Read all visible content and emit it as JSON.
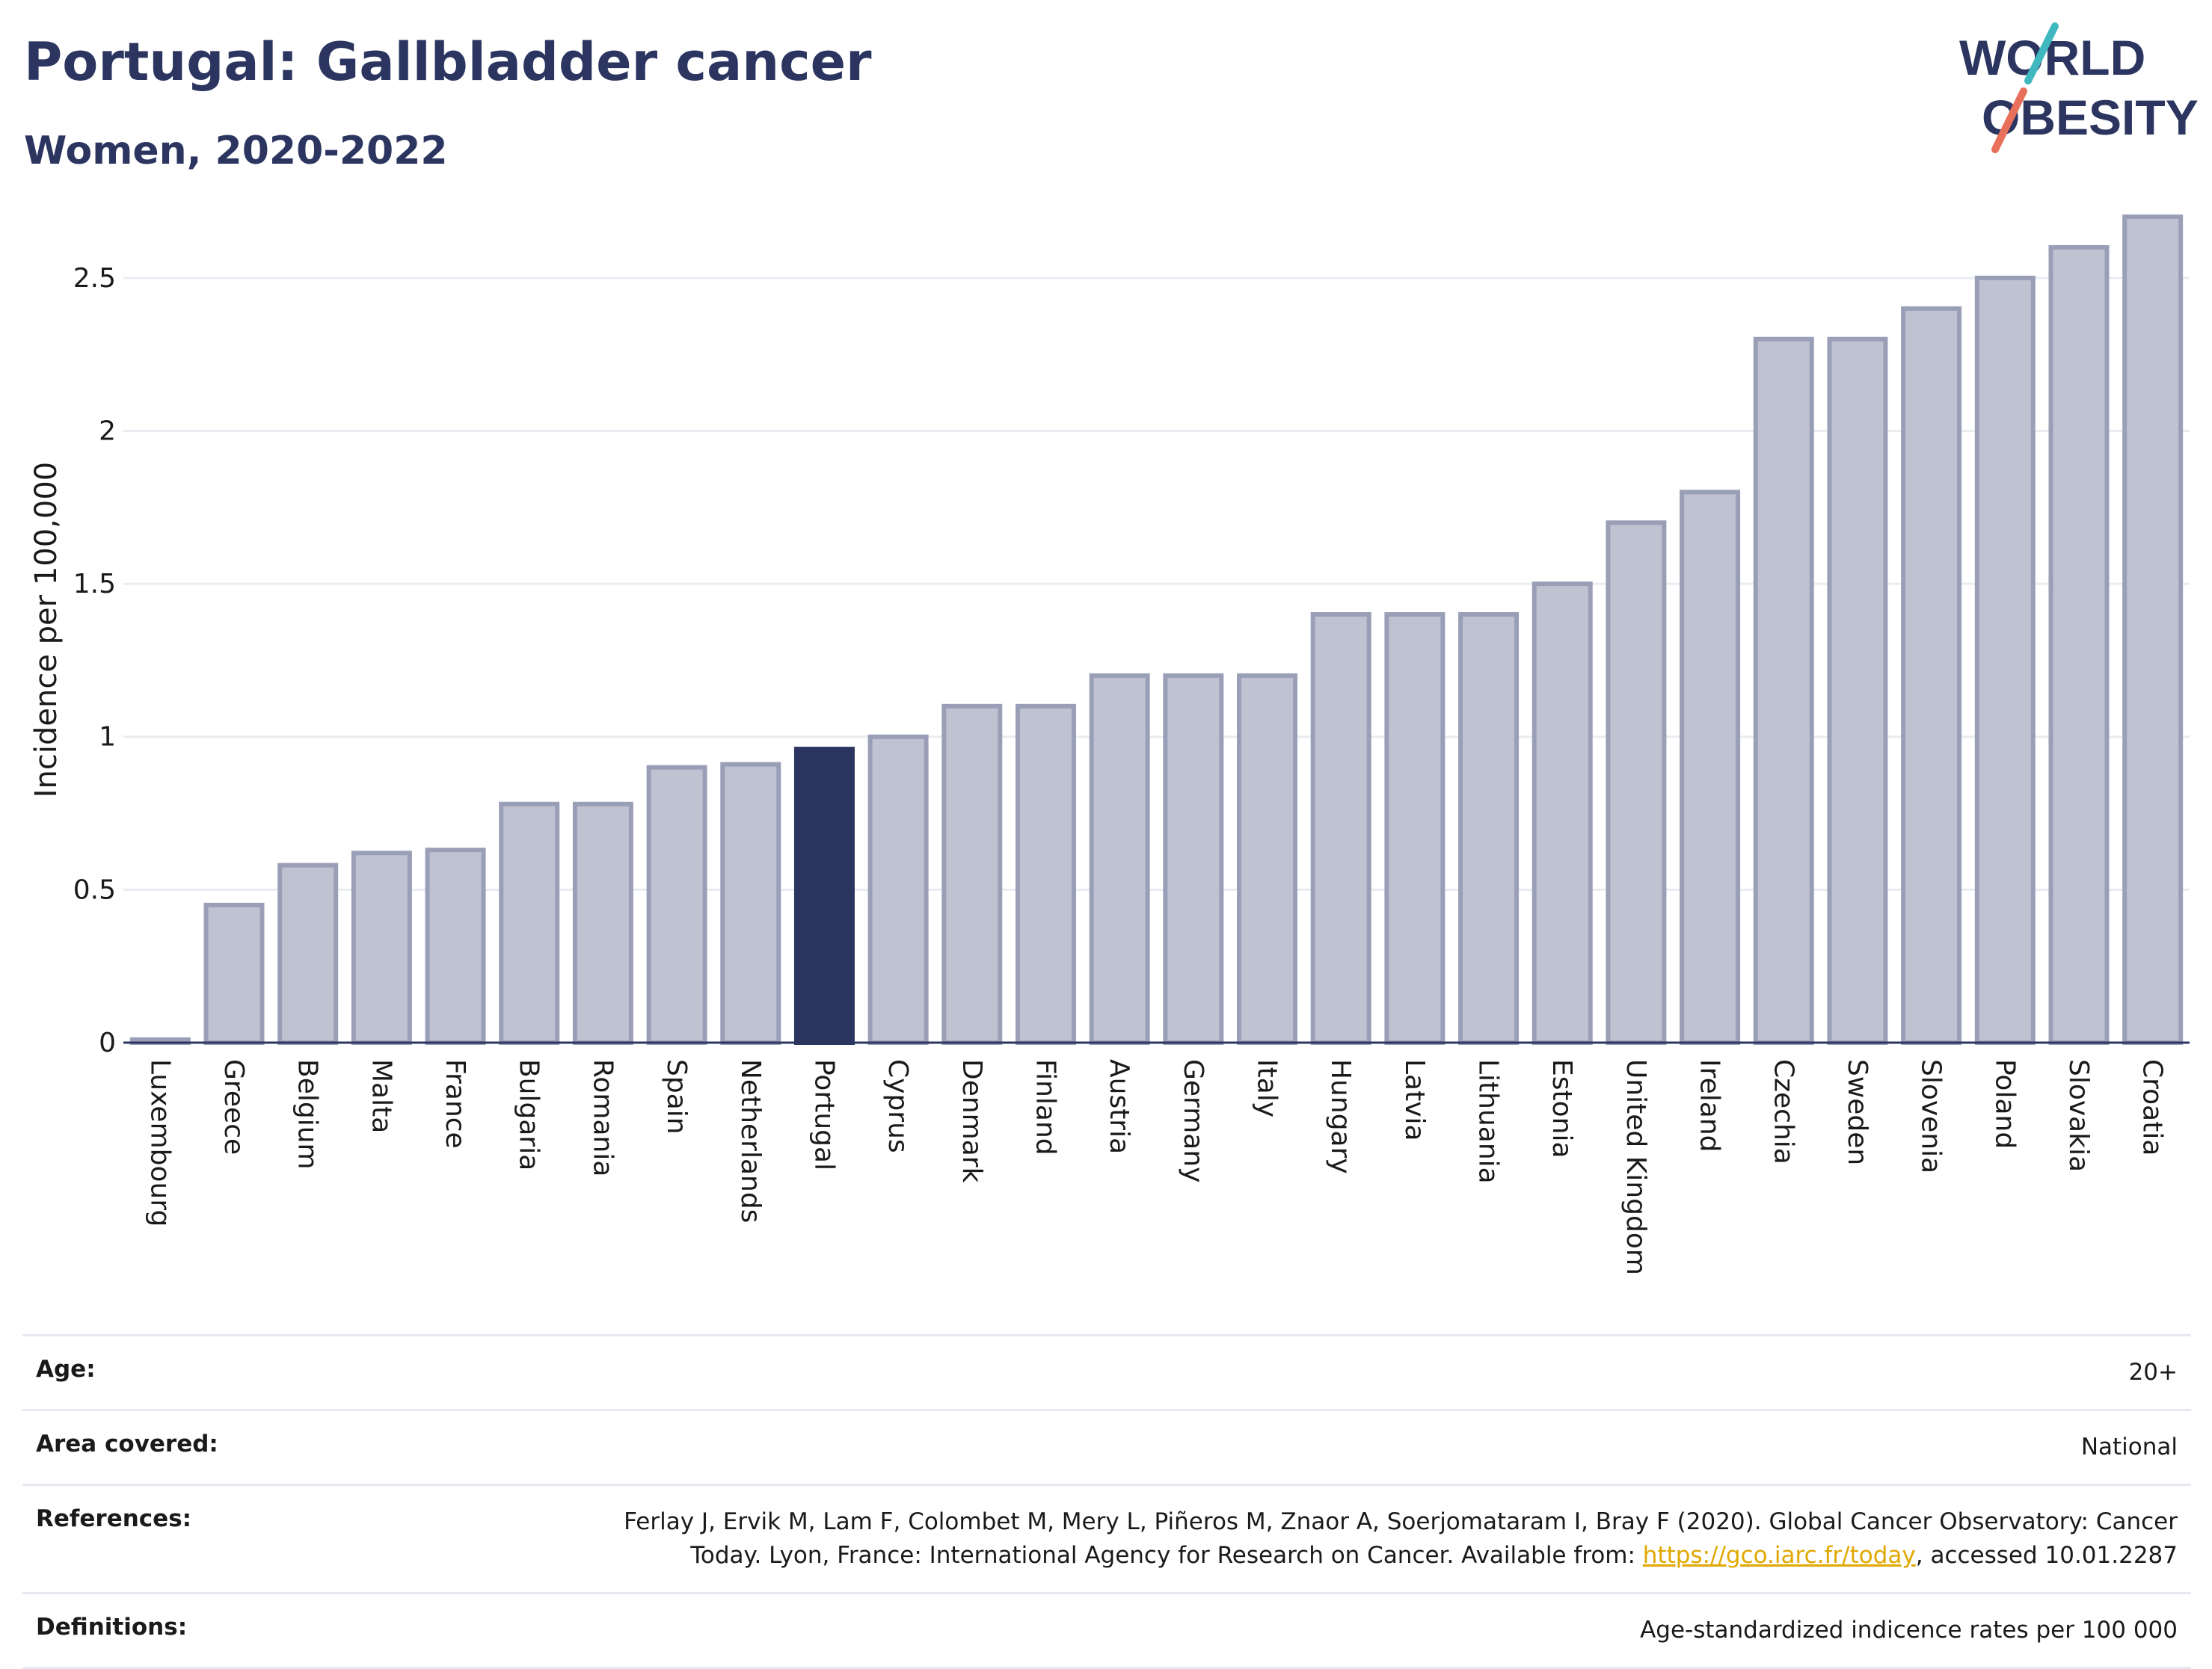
{
  "header": {
    "title": "Portugal: Gallbladder cancer",
    "subtitle": "Women, 2020-2022"
  },
  "logo": {
    "line1": "WORLD",
    "line2": "OBESITY",
    "accent_colors": [
      "#3fb8c0",
      "#e8705a"
    ]
  },
  "colors": {
    "bar": "#bfc2d0",
    "bar_stroke": "#9a9fb8",
    "highlight": "#2b3560",
    "grid": "#e9ecf1",
    "axis": "#2b3560"
  },
  "chart_data": {
    "type": "bar",
    "title": "",
    "xlabel": "",
    "ylabel": "Incidence per 100,000",
    "ylim": [
      0,
      2.7
    ],
    "yticks": [
      "0",
      "0.5",
      "1",
      "1.5",
      "2",
      "2.5"
    ],
    "ytick_values": [
      0,
      0.5,
      1,
      1.5,
      2,
      2.5
    ],
    "highlight": "Portugal",
    "grid": true,
    "categories": [
      "Luxembourg",
      "Greece",
      "Belgium",
      "Malta",
      "France",
      "Bulgaria",
      "Romania",
      "Spain",
      "Netherlands",
      "Portugal",
      "Cyprus",
      "Denmark",
      "Finland",
      "Austria",
      "Germany",
      "Italy",
      "Hungary",
      "Latvia",
      "Lithuania",
      "Estonia",
      "United Kingdom",
      "Ireland",
      "Czechia",
      "Sweden",
      "Slovenia",
      "Poland",
      "Slovakia",
      "Croatia"
    ],
    "values": [
      0.01,
      0.45,
      0.58,
      0.62,
      0.63,
      0.78,
      0.78,
      0.9,
      0.91,
      0.96,
      1.0,
      1.1,
      1.1,
      1.2,
      1.2,
      1.2,
      1.4,
      1.4,
      1.4,
      1.5,
      1.7,
      1.8,
      2.3,
      2.3,
      2.4,
      2.5,
      2.6,
      2.7
    ]
  },
  "info": {
    "age_label": "Age:",
    "age_value": "20+",
    "area_label": "Area covered:",
    "area_value": "National",
    "references_label": "References:",
    "references_line1": "Ferlay J, Ervik M, Lam F, Colombet M, Mery L, Piñeros M, Znaor A, Soerjomataram I, Bray F (2020). Global Cancer Observatory: Cancer",
    "references_line2_pre": "Today. Lyon, France: International Agency for Research on Cancer. Available from: ",
    "references_link": "https://gco.iarc.fr/today",
    "references_line2_post": ", accessed 10.01.2287",
    "definitions_label": "Definitions:",
    "definitions_value": "Age-standardized indicence rates per 100 000"
  }
}
